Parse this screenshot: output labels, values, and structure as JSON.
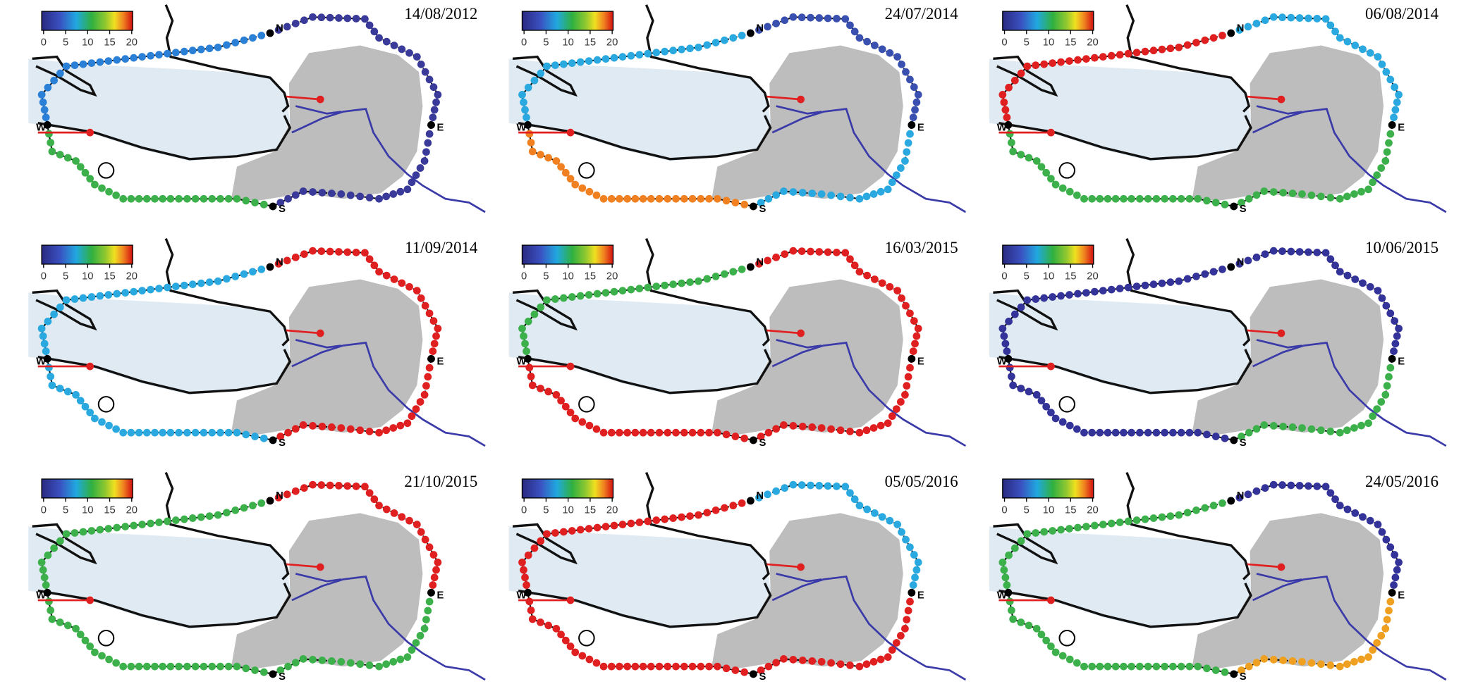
{
  "colorbar_ticks": [
    0,
    5,
    10,
    15,
    20
  ],
  "compass": {
    "north": "N",
    "east": "E",
    "south": "S",
    "west": "W"
  },
  "panels": [
    {
      "date": "14/08/2012",
      "track_colors": [
        "#2a7fd6",
        "#3a3a9a",
        "#3a3a9a",
        "#3cb04a"
      ]
    },
    {
      "date": "24/07/2014",
      "track_colors": [
        "#29a9e0",
        "#3a50b0",
        "#2aa8e0",
        "#f08020"
      ]
    },
    {
      "date": "06/08/2014",
      "track_colors": [
        "#e02020",
        "#29a9e0",
        "#3cb04a",
        "#3cb04a"
      ]
    },
    {
      "date": "11/09/2014",
      "track_colors": [
        "#29a9e0",
        "#e02020",
        "#e02020",
        "#29a9e0"
      ]
    },
    {
      "date": "16/03/2015",
      "track_colors": [
        "#3cb04a",
        "#e02020",
        "#e02020",
        "#e02020"
      ]
    },
    {
      "date": "10/06/2015",
      "track_colors": [
        "#33339a",
        "#33339a",
        "#3cb04a",
        "#33339a"
      ]
    },
    {
      "date": "21/10/2015",
      "track_colors": [
        "#3cb04a",
        "#e02020",
        "#3cb04a",
        "#3cb04a"
      ]
    },
    {
      "date": "05/05/2016",
      "track_colors": [
        "#e02020",
        "#29a9e0",
        "#e02020",
        "#e02020"
      ]
    },
    {
      "date": "24/05/2016",
      "track_colors": [
        "#3cb04a",
        "#33339a",
        "#f0a020",
        "#3cb04a"
      ]
    }
  ]
}
